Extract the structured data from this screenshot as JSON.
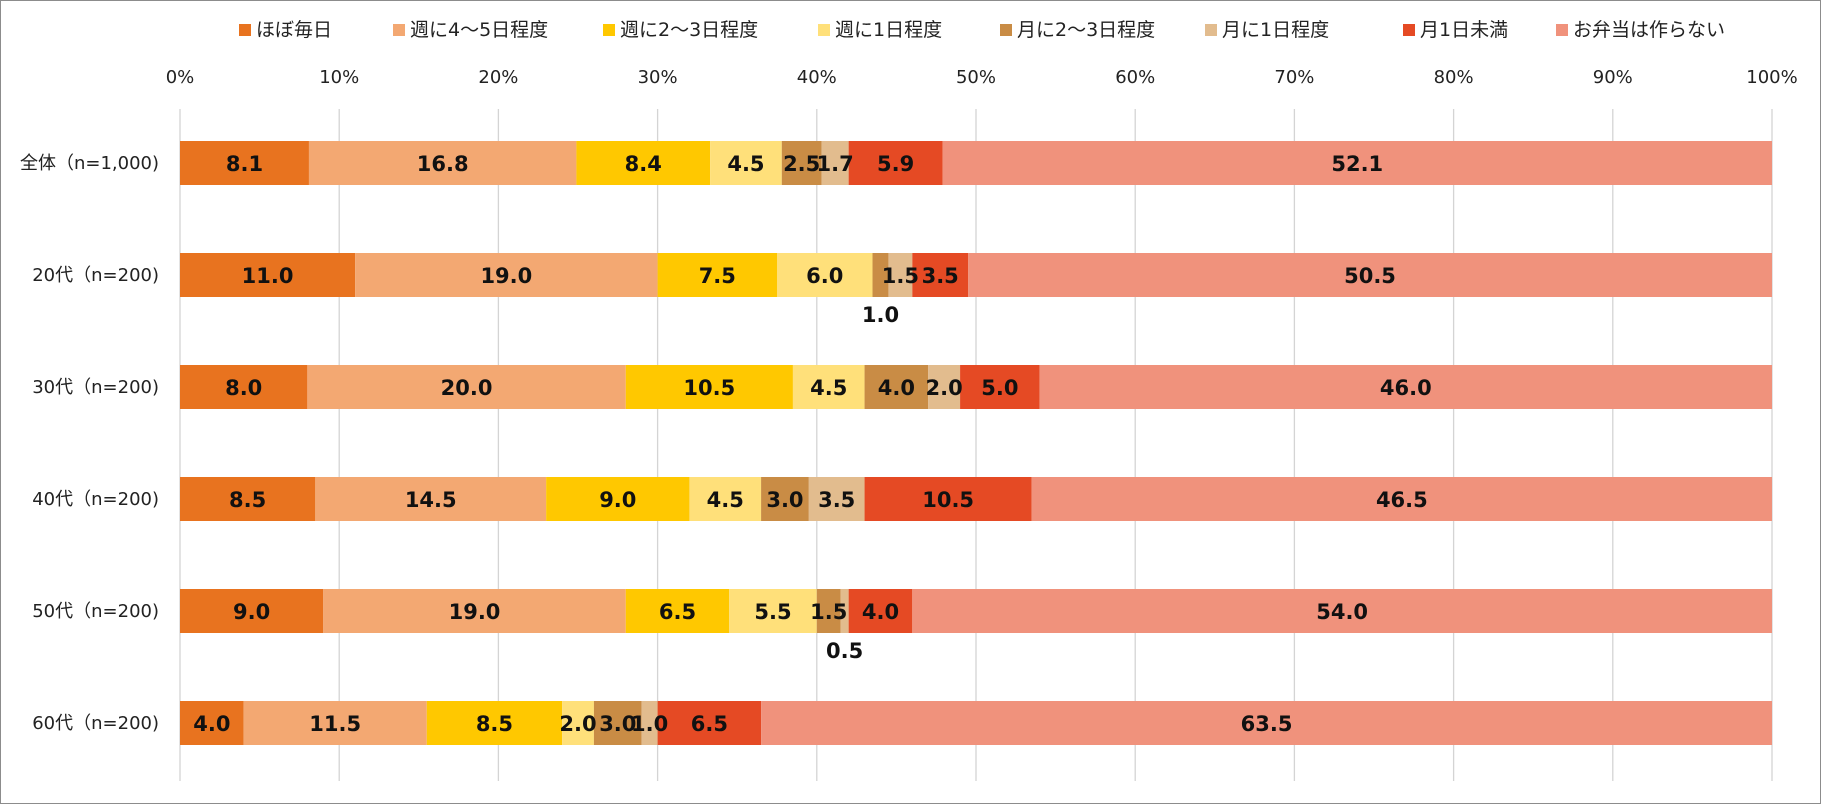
{
  "chart_data": {
    "type": "bar",
    "orientation": "horizontal",
    "stacked": "100%",
    "categories": [
      "全体（n=1,000)",
      "20代（n=200)",
      "30代（n=200)",
      "40代（n=200)",
      "50代（n=200)",
      "60代（n=200)"
    ],
    "series": [
      {
        "name": "ほぼ毎日",
        "color": "#e8731f",
        "values": [
          8.1,
          11.0,
          8.0,
          8.5,
          9.0,
          4.0
        ]
      },
      {
        "name": "週に4～5日程度",
        "color": "#f3a872",
        "values": [
          16.8,
          19.0,
          20.0,
          14.5,
          19.0,
          11.5
        ]
      },
      {
        "name": "週に2～3日程度",
        "color": "#ffc800",
        "values": [
          8.4,
          7.5,
          10.5,
          9.0,
          6.5,
          8.5
        ]
      },
      {
        "name": "週に1日程度",
        "color": "#ffe07a",
        "values": [
          4.5,
          6.0,
          4.5,
          4.5,
          5.5,
          2.0
        ]
      },
      {
        "name": "月に2～3日程度",
        "color": "#c98c45",
        "values": [
          2.5,
          1.0,
          4.0,
          3.0,
          1.5,
          3.0
        ]
      },
      {
        "name": "月に1日程度",
        "color": "#e2bc8e",
        "values": [
          1.7,
          1.5,
          2.0,
          3.5,
          0.5,
          1.0
        ]
      },
      {
        "name": "月1日未満",
        "color": "#e54a24",
        "values": [
          5.9,
          3.5,
          5.0,
          10.5,
          4.0,
          6.5
        ]
      },
      {
        "name": "お弁当は作らない",
        "color": "#f0927c",
        "values": [
          52.1,
          50.5,
          46.0,
          46.5,
          54.0,
          63.5
        ]
      }
    ],
    "xlim": [
      0,
      100
    ],
    "xticks": [
      "0%",
      "10%",
      "20%",
      "30%",
      "40%",
      "50%",
      "60%",
      "70%",
      "80%",
      "90%",
      "100%"
    ],
    "grid": true,
    "legend": "top",
    "value_labels": [
      [
        "8.1",
        "16.8",
        "8.4",
        "4.5",
        "2.5",
        "1.7",
        "5.9",
        "52.1"
      ],
      [
        "11.0",
        "19.0",
        "7.5",
        "6.0",
        "1.0",
        "1.5",
        "3.5",
        "50.5"
      ],
      [
        "8.0",
        "20.0",
        "10.5",
        "4.5",
        "4.0",
        "2.0",
        "5.0",
        "46.0"
      ],
      [
        "8.5",
        "14.5",
        "9.0",
        "4.5",
        "3.0",
        "3.5",
        "10.5",
        "46.5"
      ],
      [
        "9.0",
        "19.0",
        "6.5",
        "5.5",
        "1.5",
        "0.5",
        "4.0",
        "54.0"
      ],
      [
        "4.0",
        "11.5",
        "8.5",
        "2.0",
        "3.0",
        "1.0",
        "6.5",
        "63.5"
      ]
    ],
    "labels_below": [
      [],
      [
        4
      ],
      [],
      [],
      [
        5
      ],
      []
    ]
  }
}
